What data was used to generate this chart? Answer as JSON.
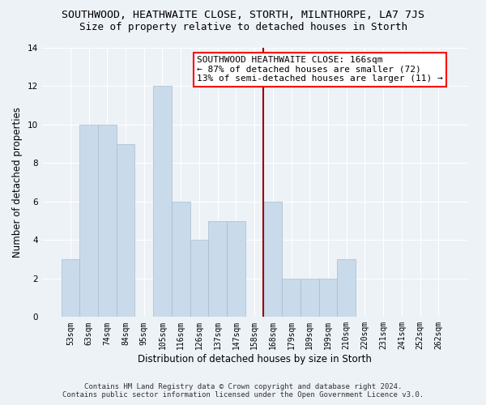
{
  "title": "SOUTHWOOD, HEATHWAITE CLOSE, STORTH, MILNTHORPE, LA7 7JS",
  "subtitle": "Size of property relative to detached houses in Storth",
  "xlabel": "Distribution of detached houses by size in Storth",
  "ylabel": "Number of detached properties",
  "categories": [
    "53sqm",
    "63sqm",
    "74sqm",
    "84sqm",
    "95sqm",
    "105sqm",
    "116sqm",
    "126sqm",
    "137sqm",
    "147sqm",
    "158sqm",
    "168sqm",
    "179sqm",
    "189sqm",
    "199sqm",
    "210sqm",
    "220sqm",
    "231sqm",
    "241sqm",
    "252sqm",
    "262sqm"
  ],
  "values": [
    3,
    10,
    10,
    9,
    0,
    12,
    6,
    4,
    5,
    5,
    0,
    6,
    2,
    2,
    2,
    3,
    0,
    0,
    0,
    0,
    0
  ],
  "bar_color": "#c9daea",
  "bar_edgecolor": "#aabccc",
  "vline_x": 11.0,
  "vline_color": "#990000",
  "annotation_title": "SOUTHWOOD HEATHWAITE CLOSE: 166sqm",
  "annotation_line1": "← 87% of detached houses are smaller (72)",
  "annotation_line2": "13% of semi-detached houses are larger (11) →",
  "ylim": [
    0,
    14
  ],
  "yticks": [
    0,
    2,
    4,
    6,
    8,
    10,
    12,
    14
  ],
  "footer1": "Contains HM Land Registry data © Crown copyright and database right 2024.",
  "footer2": "Contains public sector information licensed under the Open Government Licence v3.0.",
  "bg_color": "#edf2f7",
  "plot_bg_color": "#edf2f7",
  "title_fontsize": 9.5,
  "subtitle_fontsize": 9,
  "tick_fontsize": 7,
  "ylabel_fontsize": 8.5,
  "xlabel_fontsize": 8.5,
  "annotation_fontsize": 8,
  "footer_fontsize": 6.5
}
